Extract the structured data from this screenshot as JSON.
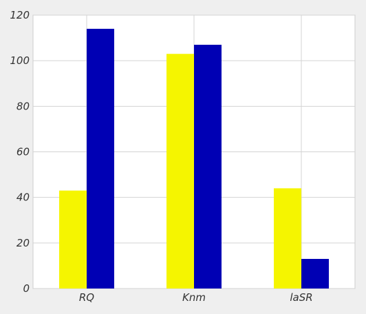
{
  "chart_data": {
    "type": "bar",
    "categories": [
      "RQ",
      "Knm",
      "laSR"
    ],
    "series": [
      {
        "values": [
          43,
          103,
          44
        ],
        "color": "#f5f500"
      },
      {
        "values": [
          114,
          107,
          13
        ],
        "color": "#0000b4"
      }
    ],
    "title": "",
    "xlabel": "",
    "ylabel": "",
    "ylim": [
      0,
      120
    ],
    "yticks": [
      0,
      20,
      40,
      60,
      80,
      100,
      120
    ],
    "grid": true,
    "legend": "none"
  },
  "colors": {
    "page_background": "#efefef",
    "plot_background": "#ffffff",
    "grid": "#d3d3d3"
  }
}
